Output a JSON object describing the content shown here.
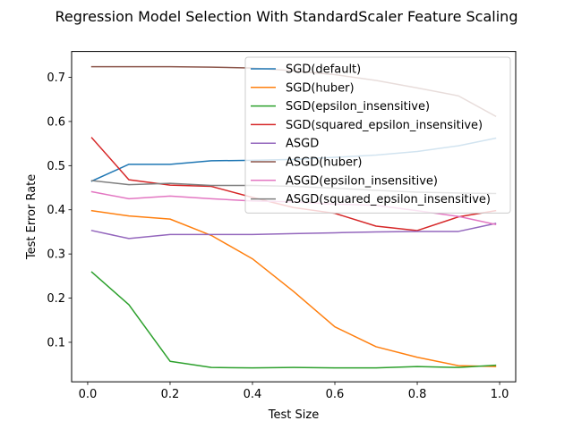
{
  "chart_data": {
    "type": "line",
    "title": "Regression Model Selection With StandardScaler Feature Scaling",
    "xlabel": "Test Size",
    "ylabel": "Test Error Rate",
    "xlim": [
      -0.039,
      1.039
    ],
    "ylim": [
      0.0105,
      0.7585
    ],
    "xticks": [
      0.0,
      0.2,
      0.4,
      0.6,
      0.8,
      1.0
    ],
    "xtick_labels": [
      "0.0",
      "0.2",
      "0.4",
      "0.6",
      "0.8",
      "1.0"
    ],
    "yticks": [
      0.1,
      0.2,
      0.3,
      0.4,
      0.5,
      0.6,
      0.7
    ],
    "ytick_labels": [
      "0.1",
      "0.2",
      "0.3",
      "0.4",
      "0.5",
      "0.6",
      "0.7"
    ],
    "grid": false,
    "legend_position": "upper-right",
    "x": [
      0.01,
      0.1,
      0.2,
      0.3,
      0.4,
      0.5,
      0.6,
      0.7,
      0.8,
      0.9,
      0.99
    ],
    "series": [
      {
        "name": "SGD(default)",
        "color": "#1f77b4",
        "values": [
          0.465,
          0.503,
          0.503,
          0.511,
          0.512,
          0.514,
          0.519,
          0.524,
          0.532,
          0.545,
          0.562
        ]
      },
      {
        "name": "SGD(huber)",
        "color": "#ff7f0e",
        "values": [
          0.398,
          0.386,
          0.379,
          0.342,
          0.289,
          0.215,
          0.135,
          0.09,
          0.066,
          0.047,
          0.045
        ]
      },
      {
        "name": "SGD(epsilon_insensitive)",
        "color": "#2ca02c",
        "values": [
          0.259,
          0.185,
          0.057,
          0.043,
          0.042,
          0.043,
          0.042,
          0.042,
          0.045,
          0.043,
          0.048
        ]
      },
      {
        "name": "SGD(squared_epsilon_insensitive)",
        "color": "#d62728",
        "values": [
          0.563,
          0.468,
          0.456,
          0.453,
          0.428,
          0.405,
          0.392,
          0.363,
          0.353,
          0.384,
          0.398
        ]
      },
      {
        "name": "ASGD",
        "color": "#9467bd",
        "values": [
          0.353,
          0.335,
          0.344,
          0.344,
          0.344,
          0.346,
          0.348,
          0.35,
          0.351,
          0.351,
          0.369
        ]
      },
      {
        "name": "ASGD(huber)",
        "color": "#8c564b",
        "values": [
          0.724,
          0.724,
          0.724,
          0.723,
          0.721,
          0.715,
          0.706,
          0.693,
          0.676,
          0.658,
          0.612
        ]
      },
      {
        "name": "ASGD(epsilon_insensitive)",
        "color": "#e377c2",
        "values": [
          0.441,
          0.425,
          0.431,
          0.425,
          0.42,
          0.418,
          0.413,
          0.41,
          0.398,
          0.385,
          0.367
        ]
      },
      {
        "name": "ASGD(squared_epsilon_insensitive)",
        "color": "#7f7f7f",
        "values": [
          0.466,
          0.457,
          0.46,
          0.455,
          0.455,
          0.453,
          0.449,
          0.444,
          0.44,
          0.438,
          0.437
        ]
      }
    ]
  }
}
